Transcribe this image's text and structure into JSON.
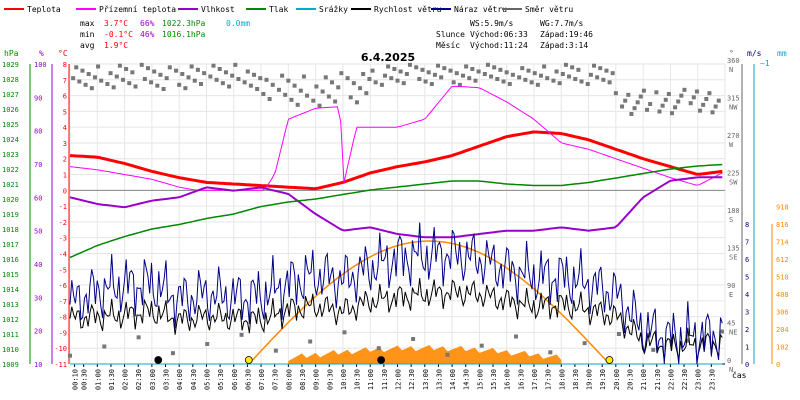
{
  "legend": [
    {
      "label": "Teplota",
      "color": "#ff0000"
    },
    {
      "label": "Přízemní teplota",
      "color": "#ff00ff"
    },
    {
      "label": "Vlhkost",
      "color": "#9900cc"
    },
    {
      "label": "Tlak",
      "color": "#008800"
    },
    {
      "label": "Srážky",
      "color": "#00aacc"
    },
    {
      "label": "Rychlost větru",
      "color": "#000000"
    },
    {
      "label": "Náraz větru",
      "color": "#000088"
    },
    {
      "label": "Směr větru",
      "color": "#666666"
    }
  ],
  "stats": {
    "max_label": "max",
    "max_temp": "3.7°C",
    "max_hum": "66%",
    "max_pres": "1022.3hPa",
    "max_rain": "0.0mm",
    "min_label": "min",
    "min_temp": "-0.1°C",
    "min_hum": "46%",
    "min_pres": "1016.1hPa",
    "avg_label": "avg",
    "avg_temp": "1.9°C"
  },
  "info": {
    "ws": "WS:5.9m/s",
    "wg": "WG:7.7m/s",
    "sun_label": "Slunce",
    "sun_rise": "Východ:06:33",
    "sun_set": "Západ:19:46",
    "moon_label": "Měsíc",
    "moon_rise": "Východ:11:24",
    "moon_set": "Západ:3:14"
  },
  "axis_units": {
    "pressure": "hPa",
    "humidity": "%",
    "temperature": "°C",
    "direction": "°",
    "speed": "m/s",
    "rain": "mm",
    "time": "čas"
  },
  "chart_data": {
    "type": "line",
    "title": "6.4.2025",
    "xlabel": "čas",
    "x_ticks": [
      "00:10",
      "00:30",
      "01:00",
      "01:30",
      "02:00",
      "02:30",
      "03:00",
      "03:30",
      "04:00",
      "04:30",
      "05:00",
      "05:30",
      "06:00",
      "06:30",
      "07:00",
      "07:30",
      "08:00",
      "08:30",
      "09:00",
      "09:30",
      "10:00",
      "10:30",
      "11:00",
      "11:30",
      "12:00",
      "12:30",
      "13:00",
      "13:30",
      "14:00",
      "14:30",
      "15:00",
      "15:30",
      "16:00",
      "16:30",
      "17:00",
      "17:30",
      "18:00",
      "18:30",
      "19:00",
      "19:30",
      "20:00",
      "20:30",
      "21:00",
      "21:30",
      "22:00",
      "22:30",
      "23:00",
      "23:30"
    ],
    "axes": {
      "pressure": {
        "label": "hPa",
        "range": [
          1009,
          1029
        ],
        "ticks": [
          1009,
          1010,
          1011,
          1012,
          1013,
          1014,
          1015,
          1016,
          1017,
          1018,
          1019,
          1020,
          1021,
          1022,
          1023,
          1024,
          1025,
          1026,
          1027,
          1028,
          1029
        ]
      },
      "humidity": {
        "label": "%",
        "range": [
          10,
          100
        ],
        "ticks": [
          10,
          20,
          30,
          40,
          50,
          60,
          70,
          80,
          90,
          100
        ]
      },
      "temperature": {
        "label": "°C",
        "range": [
          -11,
          8
        ],
        "ticks": [
          8,
          7,
          6,
          5,
          4,
          3,
          2,
          1,
          0,
          -1,
          -2,
          -3,
          -4,
          -5,
          -6,
          -7,
          -8,
          -9,
          -10,
          -11
        ]
      },
      "direction": {
        "label": "°",
        "ticks": [
          {
            "v": 360,
            "l": "N"
          },
          {
            "v": 315,
            "l": "NW"
          },
          {
            "v": 270,
            "l": "W"
          },
          {
            "v": 225,
            "l": "SW"
          },
          {
            "v": 180,
            "l": "S"
          },
          {
            "v": 135,
            "l": "SE"
          },
          {
            "v": 90,
            "l": "E"
          },
          {
            "v": 45,
            "l": "NE"
          },
          {
            "v": 0,
            "l": "N"
          }
        ]
      },
      "speed": {
        "label": "m/s",
        "range": [
          0,
          8
        ],
        "ticks": [
          0,
          1,
          2,
          3,
          4,
          5,
          6,
          7,
          8
        ]
      },
      "speed_top": {
        "value": "~1"
      },
      "rain": {
        "label": "mm",
        "ticks": [
          0,
          102,
          204,
          306,
          408,
          510,
          612,
          714,
          816,
          918
        ]
      }
    },
    "series": [
      {
        "name": "Teplota",
        "axis": "temperature",
        "color": "#ff0000",
        "x": [
          0,
          1,
          2,
          3,
          4,
          5,
          6,
          7,
          8,
          9,
          10,
          11,
          12,
          13,
          14,
          15,
          16,
          17,
          18,
          19,
          20,
          21,
          22,
          23,
          23.9
        ],
        "values": [
          2.2,
          2.1,
          1.7,
          1.2,
          0.8,
          0.5,
          0.4,
          0.3,
          0.2,
          0.1,
          0.5,
          1.1,
          1.5,
          1.8,
          2.2,
          2.8,
          3.4,
          3.7,
          3.6,
          3.2,
          2.6,
          2.0,
          1.5,
          1.0,
          1.2
        ]
      },
      {
        "name": "Přízemní teplota",
        "axis": "temperature",
        "color": "#ff00ff",
        "x": [
          0,
          1,
          2,
          3,
          4,
          5,
          6,
          7,
          7.5,
          8,
          9,
          9.9,
          10,
          10.5,
          11,
          12,
          13,
          14,
          15,
          16,
          17,
          18,
          19,
          20,
          21,
          22,
          23,
          23.9
        ],
        "values": [
          1.5,
          1.3,
          1.0,
          0.7,
          0.2,
          -0.1,
          -0.2,
          -0.3,
          1.0,
          4.5,
          5.2,
          5.3,
          0.2,
          4.0,
          4.0,
          4.0,
          4.5,
          6.6,
          6.5,
          5.6,
          4.5,
          3.0,
          2.6,
          2.0,
          1.4,
          0.8,
          0.3,
          1.1
        ]
      },
      {
        "name": "Vlhkost",
        "axis": "humidity",
        "color": "#9900cc",
        "x": [
          0,
          1,
          2,
          3,
          4,
          5,
          6,
          7,
          8,
          9,
          10,
          11,
          12,
          13,
          14,
          15,
          16,
          17,
          18,
          19,
          20,
          21,
          22,
          23,
          23.9
        ],
        "values": [
          60,
          58,
          57,
          59,
          60,
          63,
          62,
          63,
          61,
          55,
          50,
          51,
          49,
          48,
          48,
          49,
          50,
          50,
          51,
          50,
          51,
          60,
          65,
          66,
          66
        ]
      },
      {
        "name": "Tlak",
        "axis": "pressure",
        "color": "#008800",
        "x": [
          0,
          1,
          2,
          3,
          4,
          5,
          6,
          7,
          8,
          9,
          10,
          11,
          12,
          13,
          14,
          15,
          16,
          17,
          18,
          19,
          20,
          21,
          22,
          23,
          23.9
        ],
        "values": [
          1016.1,
          1016.9,
          1017.5,
          1018.0,
          1018.3,
          1018.7,
          1019.0,
          1019.5,
          1019.8,
          1020.0,
          1020.3,
          1020.6,
          1020.8,
          1021.0,
          1021.2,
          1021.2,
          1021.0,
          1020.9,
          1020.9,
          1021.1,
          1021.4,
          1021.7,
          1022.0,
          1022.2,
          1022.3
        ]
      },
      {
        "name": "Srážky",
        "axis": "rain",
        "color": "#00aacc",
        "x": [
          0,
          23.9
        ],
        "values": [
          0,
          0
        ]
      },
      {
        "name": "Rychlost větru",
        "axis": "speed",
        "color": "#000000",
        "x": [
          0,
          1,
          2,
          3,
          4,
          5,
          6,
          7,
          8,
          9,
          10,
          11,
          12,
          13,
          14,
          15,
          16,
          17,
          18,
          19,
          20,
          21,
          22,
          23,
          23.9
        ],
        "values": [
          2.6,
          2.7,
          2.8,
          3.0,
          2.5,
          2.7,
          2.6,
          2.5,
          3.1,
          3.3,
          3.0,
          3.6,
          3.8,
          4.0,
          4.1,
          4.0,
          3.6,
          3.3,
          3.4,
          3.1,
          2.7,
          1.3,
          1.0,
          1.1,
          1.2
        ]
      },
      {
        "name": "Náraz větru",
        "axis": "speed",
        "color": "#000088",
        "x": [
          0,
          1,
          2,
          3,
          4,
          5,
          6,
          7,
          8,
          9,
          10,
          11,
          12,
          13,
          14,
          15,
          16,
          17,
          18,
          19,
          20,
          21,
          22,
          23,
          23.9
        ],
        "values": [
          3.4,
          4.2,
          4.5,
          4.6,
          3.7,
          4.0,
          3.8,
          3.9,
          4.6,
          5.1,
          4.8,
          5.5,
          6.1,
          6.2,
          6.3,
          6.0,
          5.4,
          5.0,
          5.0,
          4.6,
          4.0,
          2.0,
          1.5,
          1.6,
          1.7
        ]
      }
    ]
  }
}
